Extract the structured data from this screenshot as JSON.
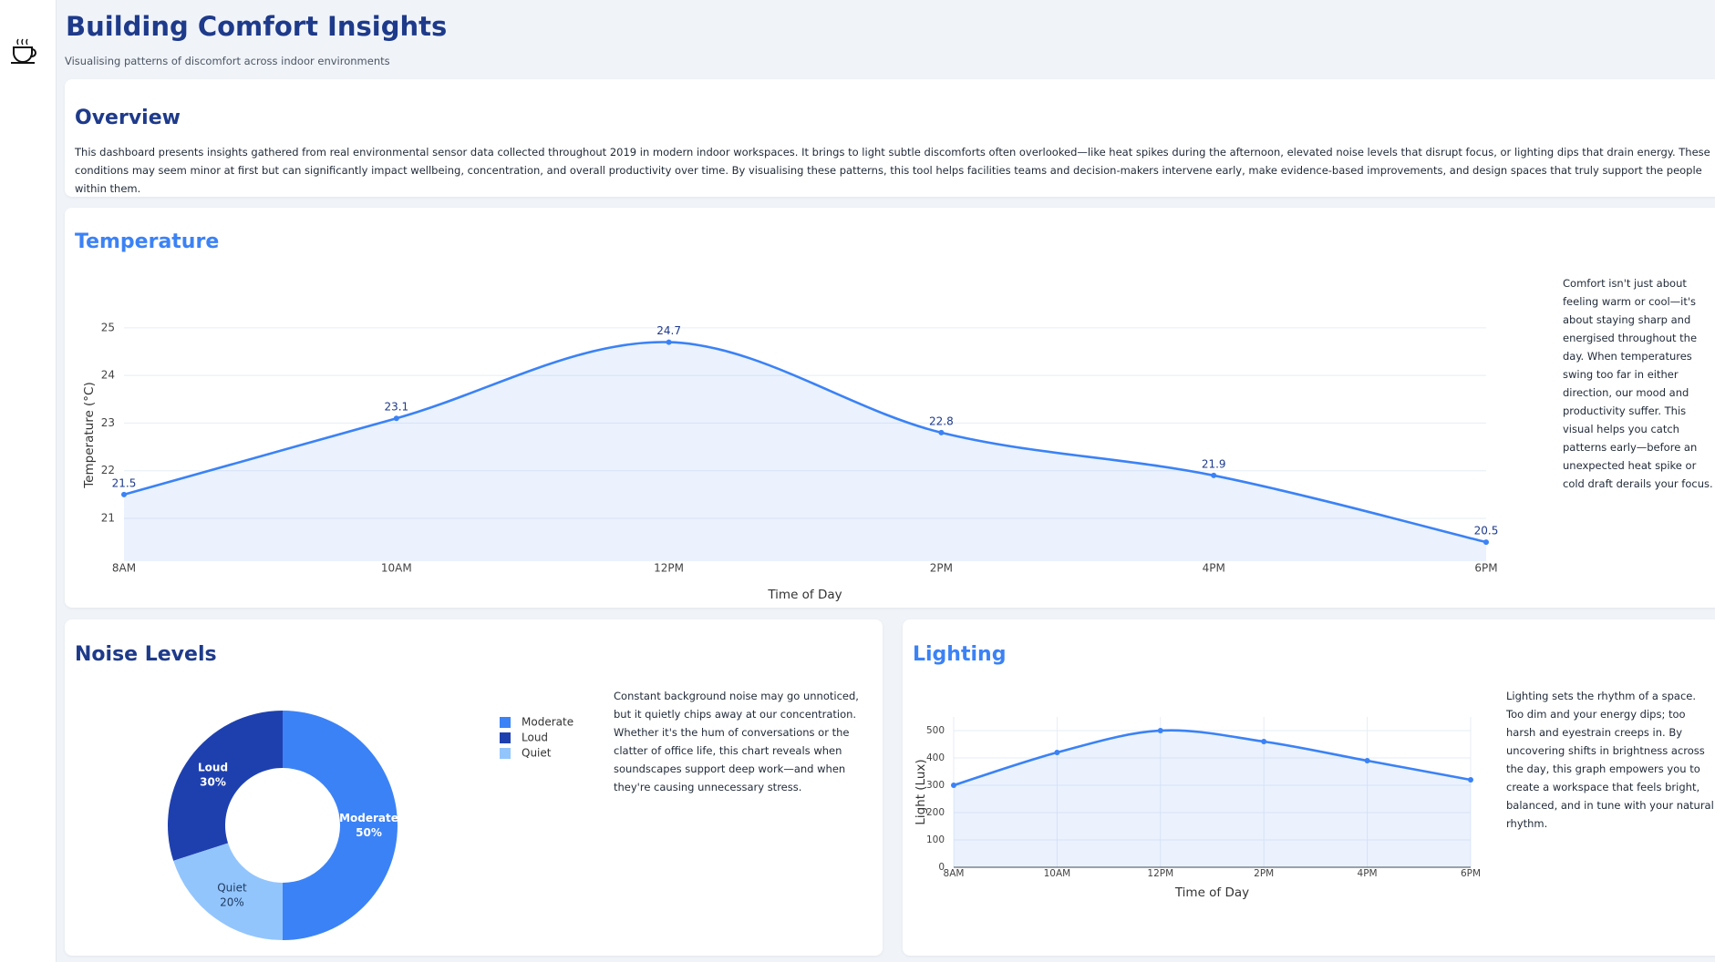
{
  "header": {
    "title": "Building Comfort Insights",
    "subtitle": "Visualising patterns of discomfort across indoor environments"
  },
  "overview": {
    "title": "Overview",
    "text": "This dashboard presents insights gathered from real environmental sensor data collected throughout 2019 in modern indoor workspaces. It brings to light subtle discomforts often overlooked—like heat spikes during the afternoon, elevated noise levels that disrupt focus, or lighting dips that drain energy. These conditions may seem minor at first but can significantly impact wellbeing, concentration, and overall productivity over time. By visualising these patterns, this tool helps facilities teams and decision-makers intervene early, make evidence-based improvements, and design spaces that truly support the people within them."
  },
  "chart_data": [
    {
      "type": "line",
      "title": "Temperature",
      "categories": [
        "8AM",
        "10AM",
        "12PM",
        "2PM",
        "4PM",
        "6PM"
      ],
      "values": [
        21.5,
        23.1,
        24.7,
        22.8,
        21.9,
        20.5
      ],
      "color": "#3b82f6",
      "x_label": "Time of Day",
      "y_label": "Temperature (°C)",
      "ylim": [
        20.1,
        25.4
      ],
      "yticks": [
        21,
        22,
        23,
        24,
        25
      ],
      "grid": true,
      "data_labels": true,
      "description": "Comfort isn't just about feeling warm or cool—it's about staying sharp and energised throughout the day. When temperatures swing too far in either direction, our mood and productivity suffer. This visual helps you catch patterns early—before an unexpected heat spike or cold draft derails your focus."
    },
    {
      "type": "pie",
      "title": "Noise Levels",
      "categories": [
        "Moderate",
        "Loud",
        "Quiet"
      ],
      "values": [
        50,
        30,
        20
      ],
      "value_labels": [
        "50%",
        "30%",
        "20%"
      ],
      "colors": [
        "#3b82f6",
        "#1e40af",
        "#93c5fd"
      ],
      "hole": 0.5,
      "legend": "right",
      "description": "Constant background noise may go unnoticed, but it quietly chips away at our concentration. Whether it's the hum of conversations or the clatter of office life, this chart reveals when soundscapes support deep work—and when they're causing unnecessary stress."
    },
    {
      "type": "line",
      "title": "Lighting",
      "categories": [
        "8AM",
        "10AM",
        "12PM",
        "2PM",
        "4PM",
        "6PM"
      ],
      "values": [
        300,
        420,
        500,
        460,
        390,
        320
      ],
      "color": "#3b82f6",
      "x_label": "Time of Day",
      "y_label": "Light (Lux)",
      "ylim": [
        0,
        550
      ],
      "yticks": [
        0,
        100,
        200,
        300,
        400,
        500
      ],
      "grid": true,
      "xgrid": true,
      "data_labels": false,
      "description": "Lighting sets the rhythm of a space. Too dim and your energy dips; too harsh and eyestrain creeps in. By uncovering shifts in brightness across the day, this graph empowers you to create a workspace that feels bright, balanced, and in tune with your natural rhythm."
    }
  ]
}
